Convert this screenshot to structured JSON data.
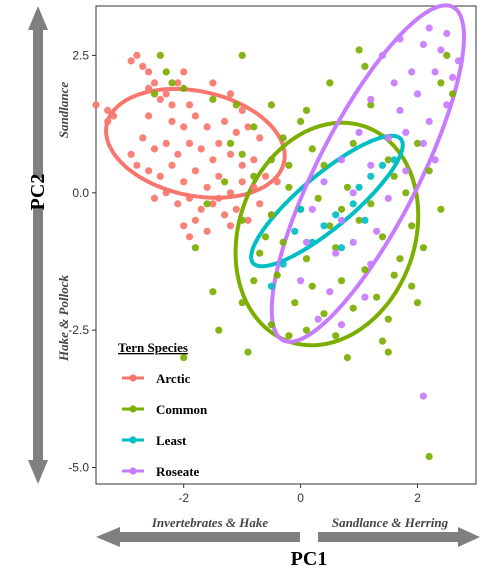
{
  "chart_data": {
    "type": "scatter",
    "xlabel": "PC1",
    "ylabel": "PC2",
    "xlim": [
      -3.5,
      3.0
    ],
    "ylim": [
      -5.3,
      3.4
    ],
    "x_ticks": [
      -2,
      0,
      2
    ],
    "y_ticks": [
      2.5,
      0.0,
      -2.5,
      -5.0
    ],
    "x_tick_labels": [
      "-2",
      "0",
      "2"
    ],
    "y_tick_labels": [
      "2.5",
      "0.0",
      "-2.5",
      "-5.0"
    ],
    "grid": false,
    "legend": {
      "title": "Tern Species",
      "placement": "bottom-left"
    },
    "axis_arrows": {
      "x_negative": "Invertebrates & Hake",
      "x_positive": "Sandlance & Herring",
      "y_positive": "Sandlance",
      "y_negative": "Hake & Pollock"
    },
    "series": [
      {
        "name": "Arctic",
        "color": "#F8766D",
        "ellipse": {
          "cx": -1.8,
          "cy": 0.9,
          "rx": 1.55,
          "ry": 0.95,
          "angle_deg": -12
        },
        "points": [
          [
            -3.5,
            1.6
          ],
          [
            -3.3,
            1.5
          ],
          [
            -3.2,
            1.4
          ],
          [
            -3.3,
            1.3
          ],
          [
            -2.9,
            2.4
          ],
          [
            -2.8,
            2.5
          ],
          [
            -2.7,
            2.3
          ],
          [
            -2.6,
            2.2
          ],
          [
            -2.5,
            2.0
          ],
          [
            -2.6,
            1.9
          ],
          [
            -2.4,
            1.7
          ],
          [
            -2.3,
            1.8
          ],
          [
            -2.0,
            2.2
          ],
          [
            -2.1,
            2.0
          ],
          [
            -1.5,
            2.0
          ],
          [
            -1.2,
            1.8
          ],
          [
            -2.6,
            1.4
          ],
          [
            -2.2,
            1.3
          ],
          [
            -2.0,
            1.2
          ],
          [
            -1.8,
            1.4
          ],
          [
            -1.6,
            1.2
          ],
          [
            -1.3,
            1.3
          ],
          [
            -1.1,
            1.1
          ],
          [
            -0.9,
            1.2
          ],
          [
            -0.7,
            1.0
          ],
          [
            -2.7,
            1.0
          ],
          [
            -2.5,
            0.8
          ],
          [
            -2.3,
            0.9
          ],
          [
            -2.1,
            0.7
          ],
          [
            -1.9,
            0.9
          ],
          [
            -1.7,
            0.8
          ],
          [
            -1.5,
            0.6
          ],
          [
            -1.4,
            0.9
          ],
          [
            -1.2,
            0.7
          ],
          [
            -1.0,
            0.5
          ],
          [
            -0.8,
            0.6
          ],
          [
            -2.8,
            0.5
          ],
          [
            -2.6,
            0.4
          ],
          [
            -2.4,
            0.3
          ],
          [
            -2.2,
            0.5
          ],
          [
            -2.0,
            0.2
          ],
          [
            -1.8,
            0.4
          ],
          [
            -1.6,
            0.1
          ],
          [
            -1.4,
            0.3
          ],
          [
            -1.2,
            0.0
          ],
          [
            -1.0,
            0.2
          ],
          [
            -0.8,
            0.1
          ],
          [
            -0.6,
            0.3
          ],
          [
            -2.5,
            -0.1
          ],
          [
            -2.3,
            0.0
          ],
          [
            -2.1,
            -0.2
          ],
          [
            -1.9,
            -0.1
          ],
          [
            -1.7,
            -0.3
          ],
          [
            -1.5,
            -0.2
          ],
          [
            -1.3,
            -0.4
          ],
          [
            -1.1,
            -0.3
          ],
          [
            -0.9,
            -0.5
          ],
          [
            -0.7,
            -0.2
          ],
          [
            -2.0,
            -0.6
          ],
          [
            -1.8,
            -0.5
          ],
          [
            -1.6,
            -0.7
          ],
          [
            -1.2,
            -0.6
          ],
          [
            -2.2,
            1.6
          ],
          [
            -1.9,
            1.6
          ],
          [
            -2.9,
            0.7
          ],
          [
            -1.9,
            -0.8
          ],
          [
            -1.4,
            -0.1
          ],
          [
            -0.5,
            -0.4
          ],
          [
            -0.4,
            0.2
          ],
          [
            -1.0,
            1.5
          ]
        ]
      },
      {
        "name": "Common",
        "color": "#7CAE00",
        "ellipse": {
          "cx": 0.45,
          "cy": -0.75,
          "rx": 1.95,
          "ry": 1.6,
          "angle_deg": 70
        },
        "points": [
          [
            -2.4,
            2.5
          ],
          [
            -2.3,
            2.2
          ],
          [
            -2.2,
            2.0
          ],
          [
            -1.0,
            2.5
          ],
          [
            -1.5,
            1.7
          ],
          [
            -0.5,
            1.6
          ],
          [
            0.1,
            1.5
          ],
          [
            0.5,
            2.0
          ],
          [
            1.0,
            2.6
          ],
          [
            1.1,
            2.3
          ],
          [
            2.6,
            1.8
          ],
          [
            2.4,
            2.0
          ],
          [
            -2.5,
            1.8
          ],
          [
            -0.8,
            1.2
          ],
          [
            -0.3,
            1.0
          ],
          [
            0.2,
            0.8
          ],
          [
            -1.0,
            0.7
          ],
          [
            -0.5,
            0.6
          ],
          [
            0.4,
            0.5
          ],
          [
            1.5,
            0.6
          ],
          [
            2.0,
            0.9
          ],
          [
            -1.3,
            0.2
          ],
          [
            -0.8,
            0.3
          ],
          [
            -0.2,
            0.1
          ],
          [
            0.3,
            -0.1
          ],
          [
            0.8,
            0.1
          ],
          [
            1.2,
            -0.2
          ],
          [
            1.6,
            0.3
          ],
          [
            -1.6,
            -0.2
          ],
          [
            -1.0,
            -0.5
          ],
          [
            -0.5,
            -0.4
          ],
          [
            0.0,
            -0.3
          ],
          [
            0.5,
            -0.6
          ],
          [
            1.0,
            -0.5
          ],
          [
            1.4,
            -0.8
          ],
          [
            1.9,
            -0.6
          ],
          [
            2.4,
            -0.3
          ],
          [
            -1.8,
            -1.0
          ],
          [
            -0.7,
            -1.1
          ],
          [
            -0.3,
            -0.9
          ],
          [
            0.1,
            -1.2
          ],
          [
            0.6,
            -1.0
          ],
          [
            1.1,
            -1.4
          ],
          [
            1.7,
            -1.2
          ],
          [
            2.1,
            -1.0
          ],
          [
            -0.8,
            -1.6
          ],
          [
            -0.4,
            -1.5
          ],
          [
            0.2,
            -1.7
          ],
          [
            0.7,
            -1.6
          ],
          [
            1.3,
            -1.9
          ],
          [
            1.9,
            -1.7
          ],
          [
            -1.5,
            -1.8
          ],
          [
            -0.1,
            -2.0
          ],
          [
            0.4,
            -2.2
          ],
          [
            0.9,
            -2.1
          ],
          [
            1.5,
            -2.3
          ],
          [
            2.0,
            -2.0
          ],
          [
            -0.5,
            -2.4
          ],
          [
            0.1,
            -2.5
          ],
          [
            0.6,
            -2.6
          ],
          [
            1.4,
            -2.7
          ],
          [
            -1.0,
            -2.0
          ],
          [
            0.8,
            -3.0
          ],
          [
            1.5,
            -2.9
          ],
          [
            -1.4,
            -2.5
          ],
          [
            -2.0,
            -3.0
          ],
          [
            2.2,
            -4.8
          ],
          [
            -0.6,
            -0.8
          ],
          [
            1.8,
            0.0
          ],
          [
            2.2,
            0.4
          ],
          [
            -1.1,
            1.6
          ],
          [
            0.9,
            0.9
          ],
          [
            1.2,
            1.6
          ],
          [
            -0.2,
            0.5
          ],
          [
            0.0,
            1.3
          ],
          [
            2.5,
            2.5
          ],
          [
            -2.0,
            1.9
          ],
          [
            -1.2,
            0.9
          ],
          [
            0.7,
            -0.3
          ],
          [
            1.6,
            -1.5
          ],
          [
            -0.9,
            -2.9
          ],
          [
            -0.2,
            -2.6
          ]
        ]
      },
      {
        "name": "Least",
        "color": "#00BFC4",
        "ellipse": {
          "cx": 0.45,
          "cy": -0.15,
          "rx": 1.65,
          "ry": 0.48,
          "angle_deg": 40
        },
        "points": [
          [
            -0.3,
            -1.3
          ],
          [
            0.2,
            -0.9
          ],
          [
            0.6,
            -0.4
          ],
          [
            1.0,
            0.1
          ],
          [
            1.4,
            0.5
          ],
          [
            0.4,
            -0.6
          ],
          [
            0.9,
            -0.2
          ],
          [
            -0.1,
            -0.7
          ],
          [
            1.2,
            0.3
          ],
          [
            1.6,
            0.6
          ],
          [
            -0.5,
            -1.7
          ],
          [
            0.7,
            -1.0
          ],
          [
            0.0,
            -0.3
          ],
          [
            1.1,
            -0.5
          ]
        ]
      },
      {
        "name": "Roseate",
        "color": "#C77CFF",
        "ellipse": {
          "cx": 1.15,
          "cy": 0.35,
          "rx": 3.2,
          "ry": 0.92,
          "angle_deg": 63
        },
        "points": [
          [
            2.2,
            3.0
          ],
          [
            2.5,
            2.9
          ],
          [
            1.7,
            2.8
          ],
          [
            2.1,
            2.7
          ],
          [
            2.4,
            2.6
          ],
          [
            2.7,
            2.4
          ],
          [
            1.4,
            2.5
          ],
          [
            1.9,
            2.2
          ],
          [
            2.3,
            2.2
          ],
          [
            1.6,
            2.0
          ],
          [
            2.0,
            1.8
          ],
          [
            2.5,
            1.6
          ],
          [
            1.2,
            1.7
          ],
          [
            1.7,
            1.5
          ],
          [
            2.2,
            1.3
          ],
          [
            1.0,
            1.1
          ],
          [
            1.5,
            1.0
          ],
          [
            2.1,
            0.9
          ],
          [
            0.7,
            0.6
          ],
          [
            1.2,
            0.5
          ],
          [
            1.8,
            0.4
          ],
          [
            0.4,
            0.2
          ],
          [
            0.9,
            0.0
          ],
          [
            1.5,
            -0.1
          ],
          [
            0.2,
            -0.3
          ],
          [
            0.7,
            -0.5
          ],
          [
            1.3,
            -0.7
          ],
          [
            0.1,
            -0.9
          ],
          [
            0.6,
            -1.1
          ],
          [
            1.2,
            -1.3
          ],
          [
            0.0,
            -1.6
          ],
          [
            0.5,
            -1.8
          ],
          [
            1.1,
            -1.9
          ],
          [
            0.3,
            -2.3
          ],
          [
            0.7,
            -2.4
          ],
          [
            2.1,
            -3.7
          ],
          [
            2.6,
            2.1
          ],
          [
            1.8,
            1.1
          ],
          [
            0.9,
            -0.9
          ],
          [
            2.3,
            0.6
          ]
        ]
      }
    ]
  }
}
